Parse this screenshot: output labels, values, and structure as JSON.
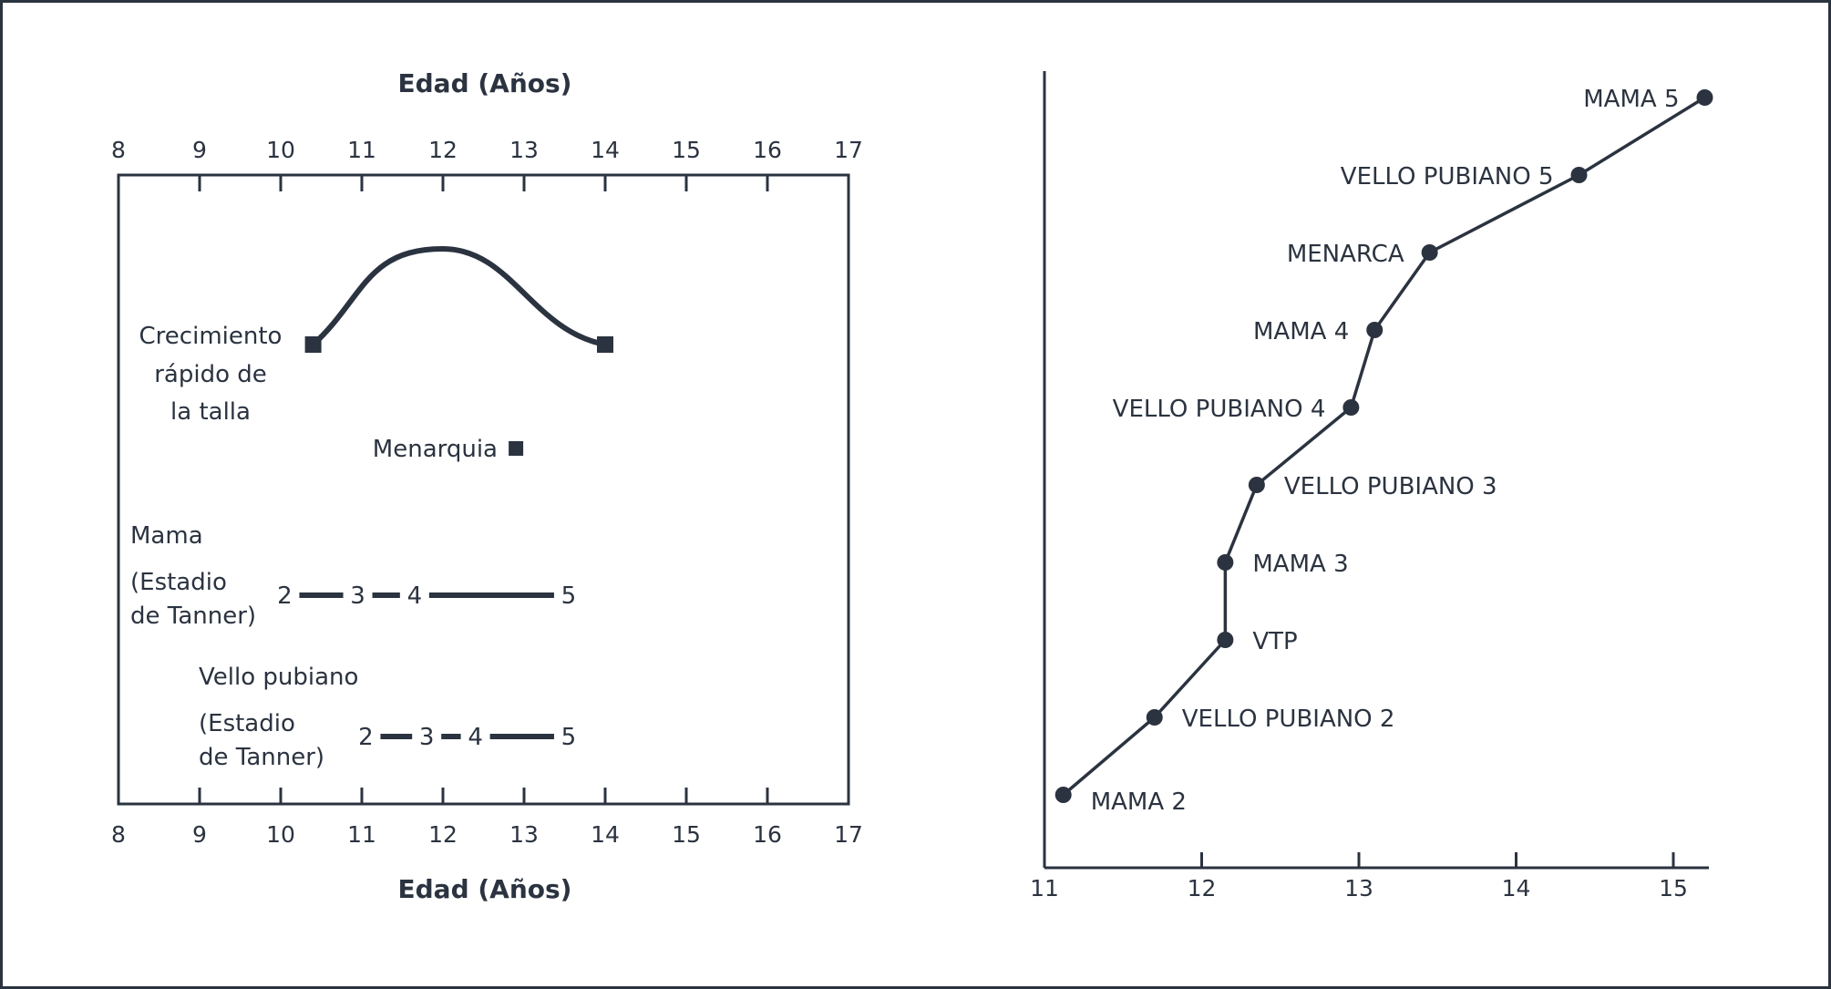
{
  "chart_data": [
    {
      "type": "timeline",
      "title": "",
      "xlabel_top": "Edad (Años)",
      "xlabel_bottom": "Edad (Años)",
      "xlim": [
        8,
        17
      ],
      "xticks": [
        "8",
        "9",
        "10",
        "11",
        "12",
        "13",
        "14",
        "15",
        "16",
        "17"
      ],
      "growth": {
        "label": [
          "Crecimiento",
          "rápido de",
          "la talla"
        ],
        "start": 10.4,
        "peak": 12,
        "end": 14
      },
      "menarche": {
        "label": "Menarquia",
        "age": 12.9
      },
      "breast": {
        "label": "Mama",
        "sub": [
          "(Estadio",
          "de Tanner)"
        ],
        "stages": [
          {
            "label": "2",
            "age": 10.05
          },
          {
            "label": "3",
            "age": 10.95
          },
          {
            "label": "4",
            "age": 11.65
          },
          {
            "label": "5",
            "age": 13.55
          }
        ]
      },
      "pubic": {
        "label": "Vello pubiano",
        "sub": [
          "(Estadio",
          "de Tanner)"
        ],
        "stages": [
          {
            "label": "2",
            "age": 11.05
          },
          {
            "label": "3",
            "age": 11.8
          },
          {
            "label": "4",
            "age": 12.4
          },
          {
            "label": "5",
            "age": 13.55
          }
        ]
      }
    },
    {
      "type": "line",
      "xlim": [
        11,
        15.25
      ],
      "xticks": [
        "11",
        "12",
        "13",
        "14",
        "15"
      ],
      "points": [
        {
          "label": "MAMA 2",
          "x": 11.12,
          "rank": 1
        },
        {
          "label": "VELLO PUBIANO 2",
          "x": 11.7,
          "rank": 2
        },
        {
          "label": "VTP",
          "x": 12.15,
          "rank": 3
        },
        {
          "label": "MAMA 3",
          "x": 12.15,
          "rank": 4
        },
        {
          "label": "VELLO PUBIANO 3",
          "x": 12.35,
          "rank": 5
        },
        {
          "label": "VELLO PUBIANO 4",
          "x": 12.95,
          "rank": 6
        },
        {
          "label": "MAMA 4",
          "x": 13.1,
          "rank": 7
        },
        {
          "label": "MENARCA",
          "x": 13.45,
          "rank": 8
        },
        {
          "label": "VELLO PUBIANO 5",
          "x": 14.4,
          "rank": 9
        },
        {
          "label": "MAMA 5",
          "x": 15.2,
          "rank": 10
        }
      ]
    }
  ]
}
